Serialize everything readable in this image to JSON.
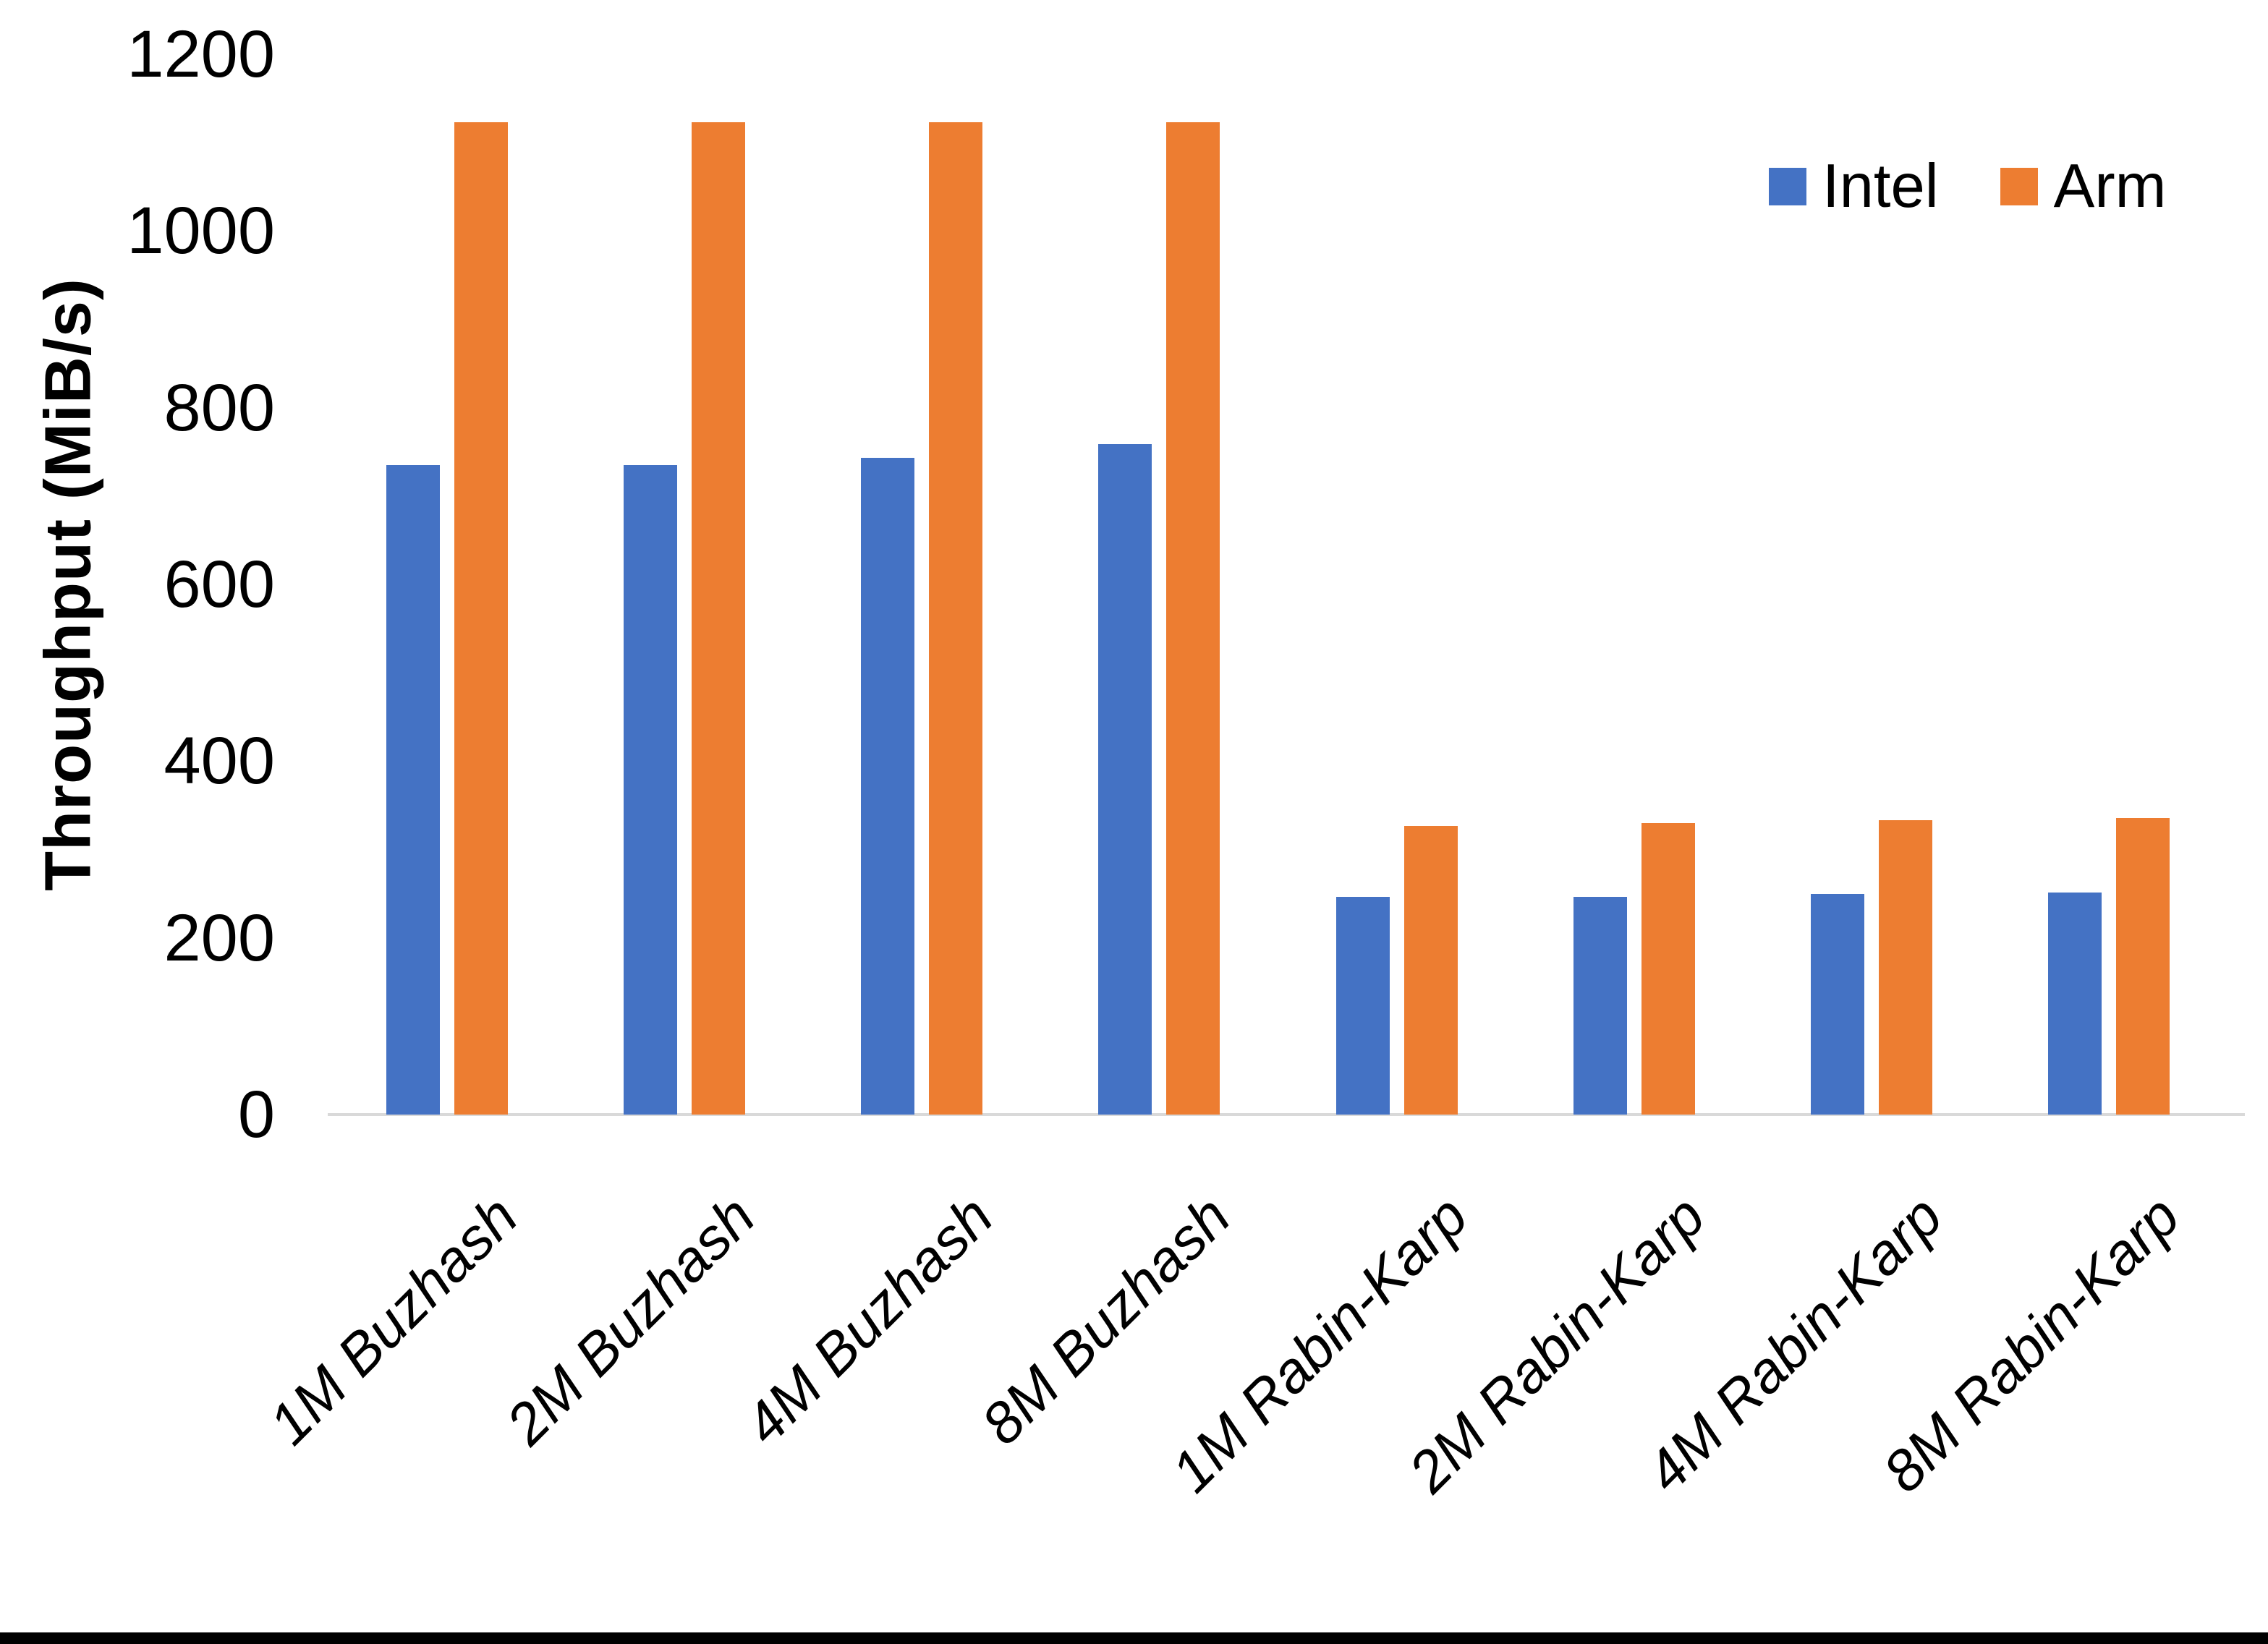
{
  "chart_data": {
    "type": "bar",
    "title": "",
    "ylabel": "Throughput (MiB/s)",
    "xlabel": "",
    "ylim": [
      0,
      1200
    ],
    "yticks": [
      0,
      200,
      400,
      600,
      800,
      1000,
      1200
    ],
    "grid": false,
    "legend_position": "top-right",
    "categories": [
      "1M Buzhash",
      "2M Buzhash",
      "4M Buzhash",
      "8M Buzhash",
      "1M Rabin-Karp",
      "2M Rabin-Karp",
      "4M Rabin-Karp",
      "8M Rabin-Karp"
    ],
    "series": [
      {
        "name": "Intel",
        "color": "#4472C4",
        "values": [
          735,
          735,
          743,
          759,
          246,
          246,
          250,
          251
        ]
      },
      {
        "name": "Arm",
        "color": "#ED7D31",
        "values": [
          1123,
          1123,
          1123,
          1123,
          327,
          330,
          333,
          336
        ]
      }
    ]
  },
  "colors": {
    "background": "#FFFFFF",
    "text": "#000000",
    "axis_line": "#D9D9D9",
    "bottom_border": "#000000"
  }
}
